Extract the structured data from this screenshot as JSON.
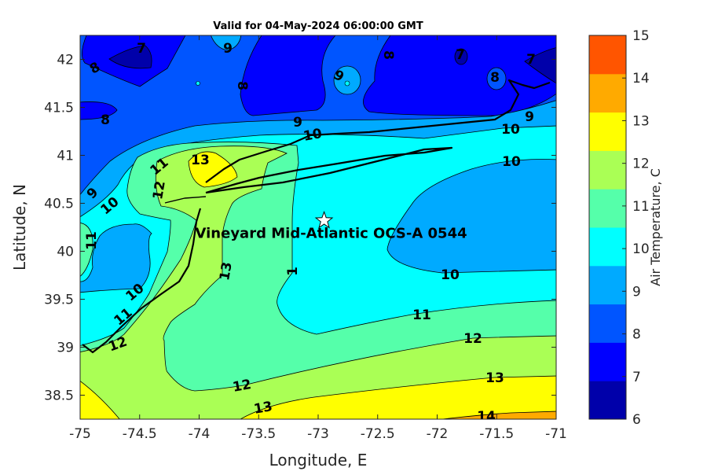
{
  "chart_data": {
    "type": "contour",
    "title": "Valid for 04-May-2024 06:00:00 GMT",
    "xlabel": "Longitude, E",
    "ylabel": "Latitude, N",
    "xlim": [
      -75,
      -71
    ],
    "ylim": [
      38.25,
      42.25
    ],
    "xticks": [
      "-75",
      "-74.5",
      "-74",
      "-73.5",
      "-73",
      "-72.5",
      "-72",
      "-71.5",
      "-71"
    ],
    "yticks": [
      "38.5",
      "39",
      "39.5",
      "40",
      "40.5",
      "41",
      "41.5",
      "42"
    ],
    "grid": false,
    "colorbar": {
      "label": "Air Temperature, C",
      "range": [
        6,
        15
      ],
      "ticks": [
        "6",
        "7",
        "8",
        "9",
        "10",
        "11",
        "12",
        "13",
        "14",
        "15"
      ],
      "colors": [
        "#0000aa",
        "#0000ff",
        "#0055ff",
        "#00aaff",
        "#00ffff",
        "#55ffaa",
        "#aaff55",
        "#ffff00",
        "#ffaa00",
        "#ff5500"
      ]
    },
    "contour_levels": [
      7,
      8,
      9,
      10,
      11,
      12,
      13,
      14
    ],
    "contour_labels": [
      "7",
      "9",
      "8",
      "9",
      "8",
      "7",
      "7",
      "8",
      "8",
      "8",
      "9",
      "10",
      "9",
      "10",
      "10",
      "13",
      "11",
      "12",
      "9",
      "10",
      "11",
      "13",
      "1",
      "10",
      "10",
      "11",
      "11",
      "12",
      "12",
      "12",
      "13",
      "13",
      "14"
    ],
    "annotation": {
      "text": "Vineyard Mid-Atlantic OCS-A 0544",
      "lon": -72.95,
      "lat": 40.32,
      "marker": "star",
      "marker_color": "#ffffff"
    }
  }
}
